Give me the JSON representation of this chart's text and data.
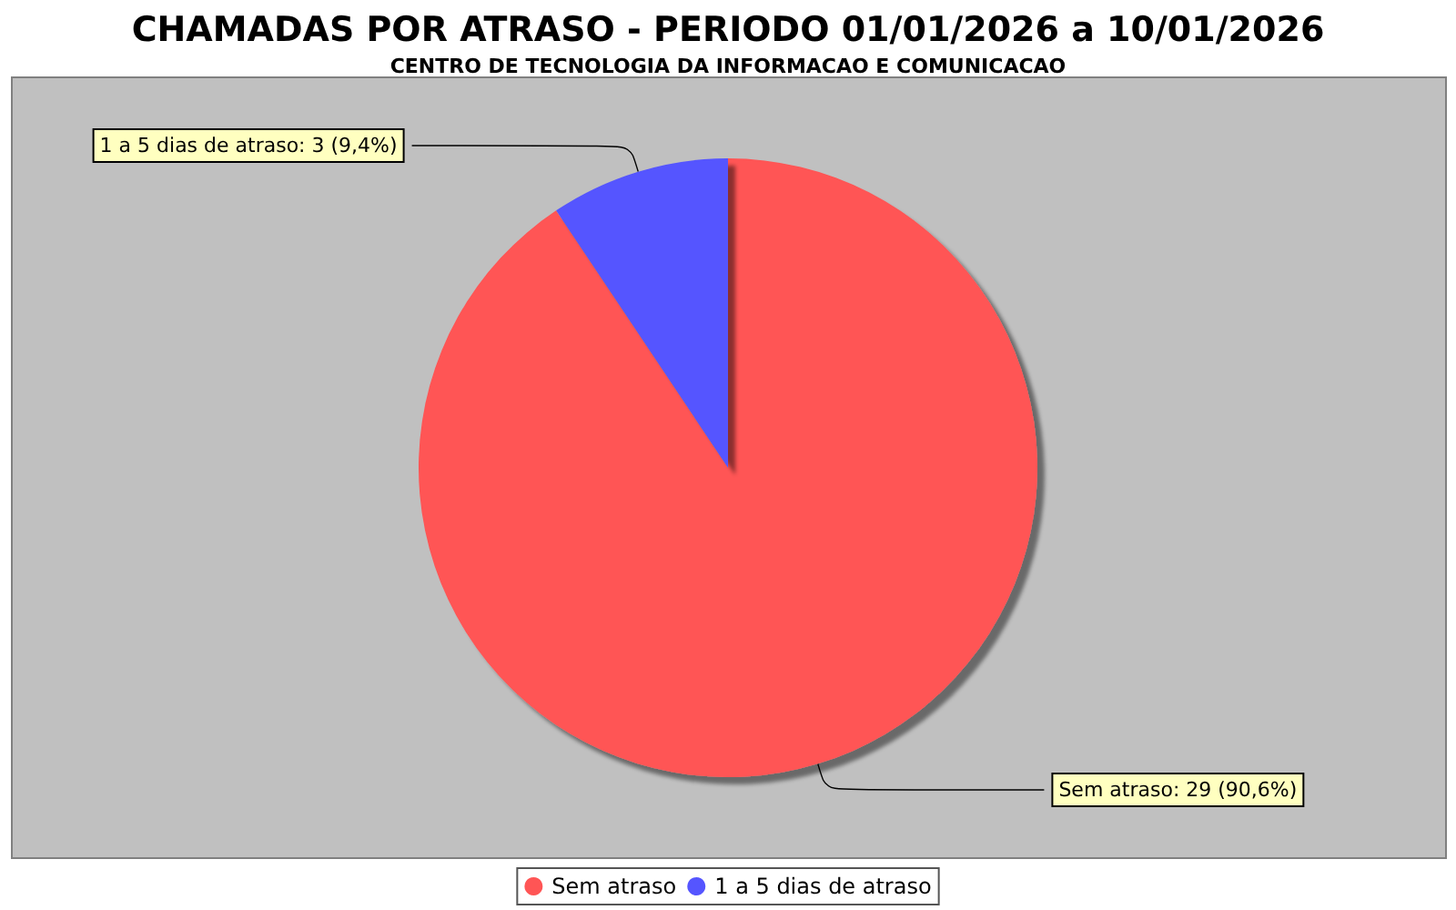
{
  "chart_data": {
    "type": "pie",
    "title": "CHAMADAS POR ATRASO - PERIODO 01/01/2026 a 10/01/2026",
    "subtitle": "CENTRO DE TECNOLOGIA DA INFORMACAO E COMUNICACAO",
    "categories": [
      "Sem atraso",
      "1 a 5 dias de atraso"
    ],
    "values": [
      29,
      3
    ],
    "colors": [
      "#ff5555",
      "#5555ff"
    ],
    "value_labels": [
      "Sem atraso: 29 (90,6%)",
      "1 a 5 dias de atraso: 3 (9,4%)"
    ],
    "legend": "bottom"
  }
}
